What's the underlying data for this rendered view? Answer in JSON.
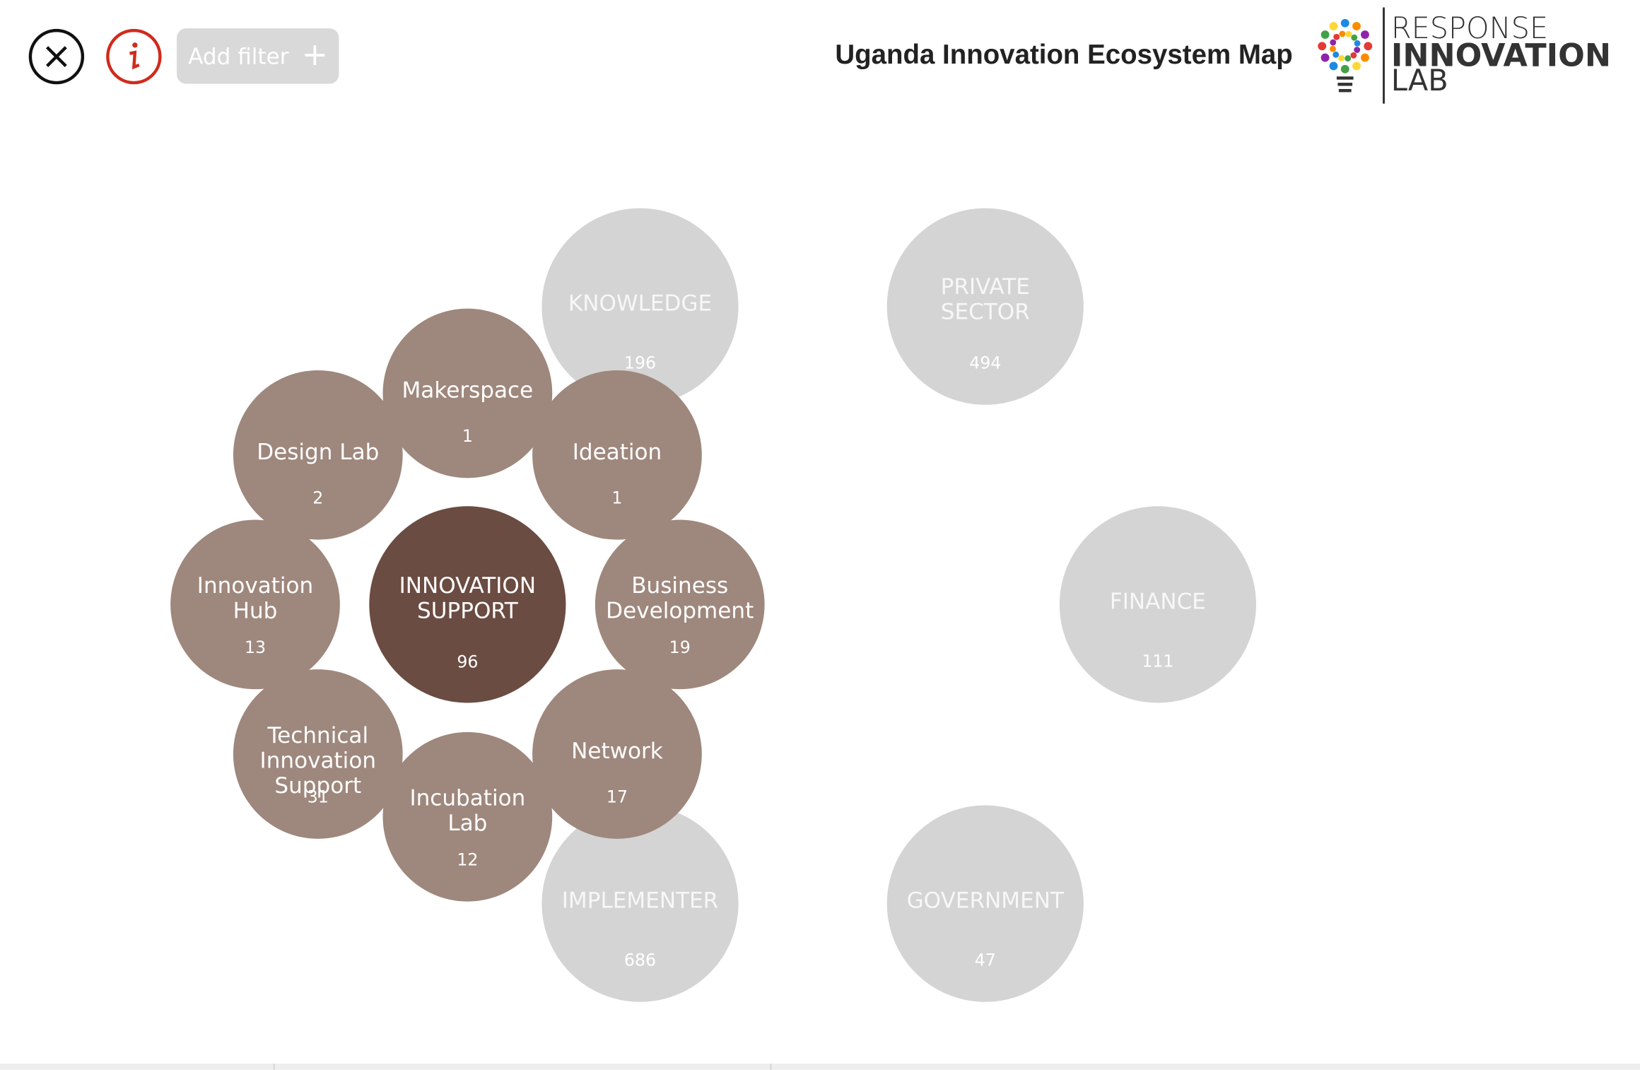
{
  "header": {
    "filter_button": "Add filter",
    "filter_icon": "+",
    "title": "Uganda Innovation Ecosystem Map",
    "logo": [
      "RESPONSE",
      "INNOVATION",
      "LAB"
    ]
  },
  "categories": [
    {
      "label": [
        "KNOWLEDGE"
      ],
      "count": "196"
    },
    {
      "label": [
        "PRIVATE",
        "SECTOR"
      ],
      "count": "494"
    },
    {
      "label": [
        "FINANCE"
      ],
      "count": "111"
    },
    {
      "label": [
        "GOVERNMENT"
      ],
      "count": "47"
    },
    {
      "label": [
        "IMPLEMENTER"
      ],
      "count": "686"
    }
  ],
  "selected": {
    "label": [
      "INNOVATION",
      "SUPPORT"
    ],
    "count": "96"
  },
  "subcategories": [
    {
      "label": [
        "Makerspace"
      ],
      "count": "1"
    },
    {
      "label": [
        "Ideation"
      ],
      "count": "1"
    },
    {
      "label": [
        "Business",
        "Development"
      ],
      "count": "19"
    },
    {
      "label": [
        "Network"
      ],
      "count": "17"
    },
    {
      "label": [
        "Incubation",
        "Lab"
      ],
      "count": "12"
    },
    {
      "label": [
        "Technical",
        "Innovation",
        "Support"
      ],
      "count": "31"
    },
    {
      "label": [
        "Innovation",
        "Hub"
      ],
      "count": "13"
    },
    {
      "label": [
        "Design Lab"
      ],
      "count": "2"
    }
  ]
}
